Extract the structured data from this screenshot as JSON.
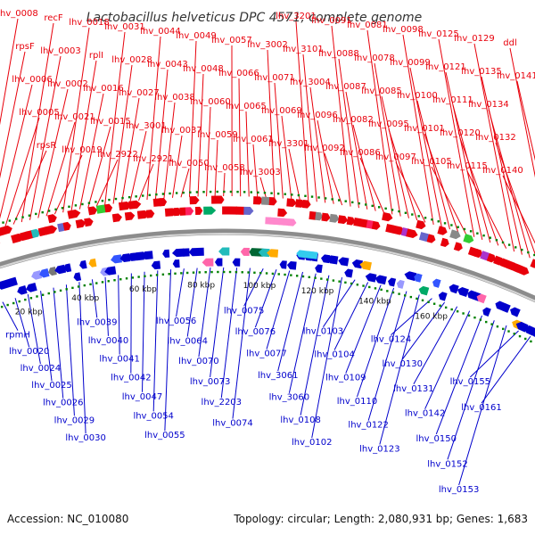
{
  "title": "Lactobacillus helveticus DPC 4571, complete genome",
  "footer": {
    "accession": "Accession: NC_010080",
    "summary": "Topology: circular; Length: 2,080,931 bp; Genes: 1,683"
  },
  "colors": {
    "forward": "#e8000b",
    "reverse": "#0000cc",
    "rna_forward": "#ff88cc",
    "rna_reverse": "#33ccee",
    "backbone": "#8c8c8c",
    "tick_mark": "#008000"
  },
  "ticks": [
    "20 kbp",
    "40 kbp",
    "60 kbp",
    "80 kbp",
    "100 kbp",
    "120 kbp",
    "140 kbp",
    "160 kbp"
  ],
  "labels_forward": [
    "lhv_0008",
    "rpsF",
    "lhv_0006",
    "lhv_0005",
    "rpsR",
    "recF",
    "lhv_0003",
    "lhv_0002",
    "lhv_0021",
    "lhv_0019",
    "lhv_0018",
    "rplI",
    "lhv_0016",
    "lhv_0015",
    "lhv_2922",
    "lhv_0031",
    "lhv_0028",
    "lhv_0027",
    "lhv_3001",
    "lhv_2921",
    "lhv_0044",
    "lhv_0043",
    "lhv_0038",
    "lhv_0037",
    "lhv_0050",
    "lhv_0049",
    "lhv_0048",
    "lhv_0060",
    "lhv_0059",
    "lhv_0058",
    "lhv_0057",
    "lhv_0066",
    "lhv_0065",
    "lhv_0061",
    "lhv_3003",
    "lhv_3002",
    "lhv_0071",
    "lhv_0069",
    "lhv_3301",
    "lhv_3201",
    "lhv_3101",
    "lhv_3004",
    "lhv_0096",
    "lhv_0092",
    "lhv_0091",
    "lhv_0088",
    "lhv_0087",
    "lhv_0082",
    "lhv_0086",
    "lhv_0081",
    "lhv_0078",
    "lhv_0085",
    "lhv_0095",
    "lhv_0097",
    "lhv_0098",
    "lhv_0099",
    "lhv_0100",
    "lhv_0101",
    "lhv_0105",
    "lhv_0125",
    "lhv_0121",
    "lhv_0111",
    "lhv_0120",
    "lhv_0115",
    "lhv_0129",
    "lhv_0135",
    "lhv_0134",
    "lhv_0132",
    "lhv_0140",
    "ddl",
    "lhv_0141"
  ],
  "labels_reverse": [
    "rpmH",
    "lhv_0020",
    "lhv_0024",
    "lhv_0025",
    "lhv_0026",
    "lhv_0029",
    "lhv_0030",
    "lhv_0039",
    "lhv_0040",
    "lhv_0041",
    "lhv_0042",
    "lhv_0047",
    "lhv_0054",
    "lhv_0055",
    "lhv_0056",
    "lhv_0064",
    "lhv_0070",
    "lhv_0073",
    "lhv_2203",
    "lhv_0074",
    "lhv_0075",
    "lhv_0076",
    "lhv_0077",
    "lhv_3061",
    "lhv_3060",
    "lhv_0108",
    "lhv_0102",
    "lhv_0103",
    "lhv_0104",
    "lhv_0109",
    "lhv_0110",
    "lhv_0122",
    "lhv_0123",
    "lhv_0124",
    "lhv_0130",
    "lhv_0131",
    "lhv_0142",
    "lhv_0150",
    "lhv_0152",
    "lhv_0153",
    "lhv_0155",
    "lhv_0161"
  ]
}
